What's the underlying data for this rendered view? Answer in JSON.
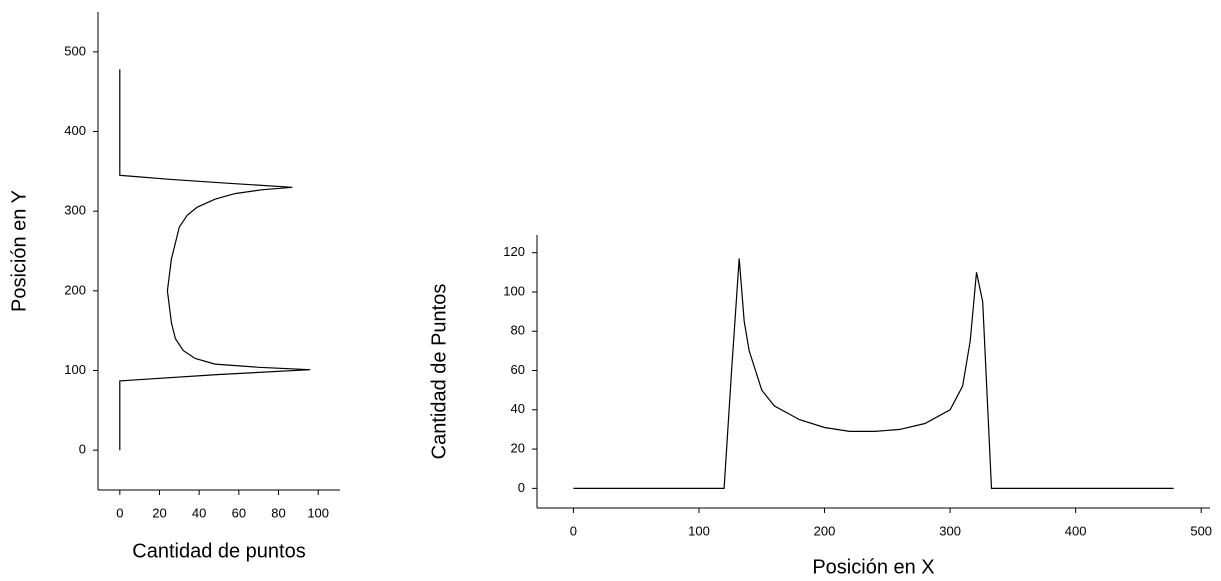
{
  "chart_data": [
    {
      "type": "line",
      "orientation": "horizontal",
      "x_label": "Cantidad de puntos",
      "y_label": "Posición en Y",
      "color": "#000000",
      "y": [
        0,
        87,
        95,
        101,
        104,
        108,
        115,
        125,
        140,
        160,
        180,
        200,
        220,
        240,
        260,
        280,
        295,
        305,
        315,
        322,
        327,
        330,
        335,
        340,
        345,
        478
      ],
      "values": [
        0,
        0,
        50,
        96,
        70,
        48,
        38,
        32,
        28,
        26,
        25,
        24,
        25,
        26,
        28,
        30,
        34,
        39,
        48,
        58,
        72,
        87,
        55,
        25,
        0,
        0
      ],
      "xlim": [
        -11,
        111
      ],
      "xticks": [
        0,
        20,
        40,
        60,
        80,
        100
      ],
      "ylim": [
        -50,
        550
      ],
      "yticks": [
        0,
        100,
        200,
        300,
        400,
        500
      ]
    },
    {
      "type": "line",
      "orientation": "vertical",
      "x_label": "Posición en X",
      "y_label": "Cantidad de Puntos",
      "color": "#000000",
      "x": [
        0,
        120,
        126,
        132,
        136,
        140,
        150,
        160,
        180,
        200,
        220,
        240,
        260,
        280,
        300,
        310,
        316,
        321,
        326,
        333,
        478
      ],
      "values": [
        0,
        0,
        60,
        117,
        85,
        70,
        50,
        42,
        35,
        31,
        29,
        29,
        30,
        33,
        40,
        52,
        75,
        110,
        95,
        0,
        0
      ],
      "xlim": [
        -29,
        507
      ],
      "xticks": [
        0,
        100,
        200,
        300,
        400,
        500
      ],
      "ylim": [
        -10,
        129
      ],
      "yticks": [
        0,
        20,
        40,
        60,
        80,
        100,
        120
      ]
    }
  ]
}
